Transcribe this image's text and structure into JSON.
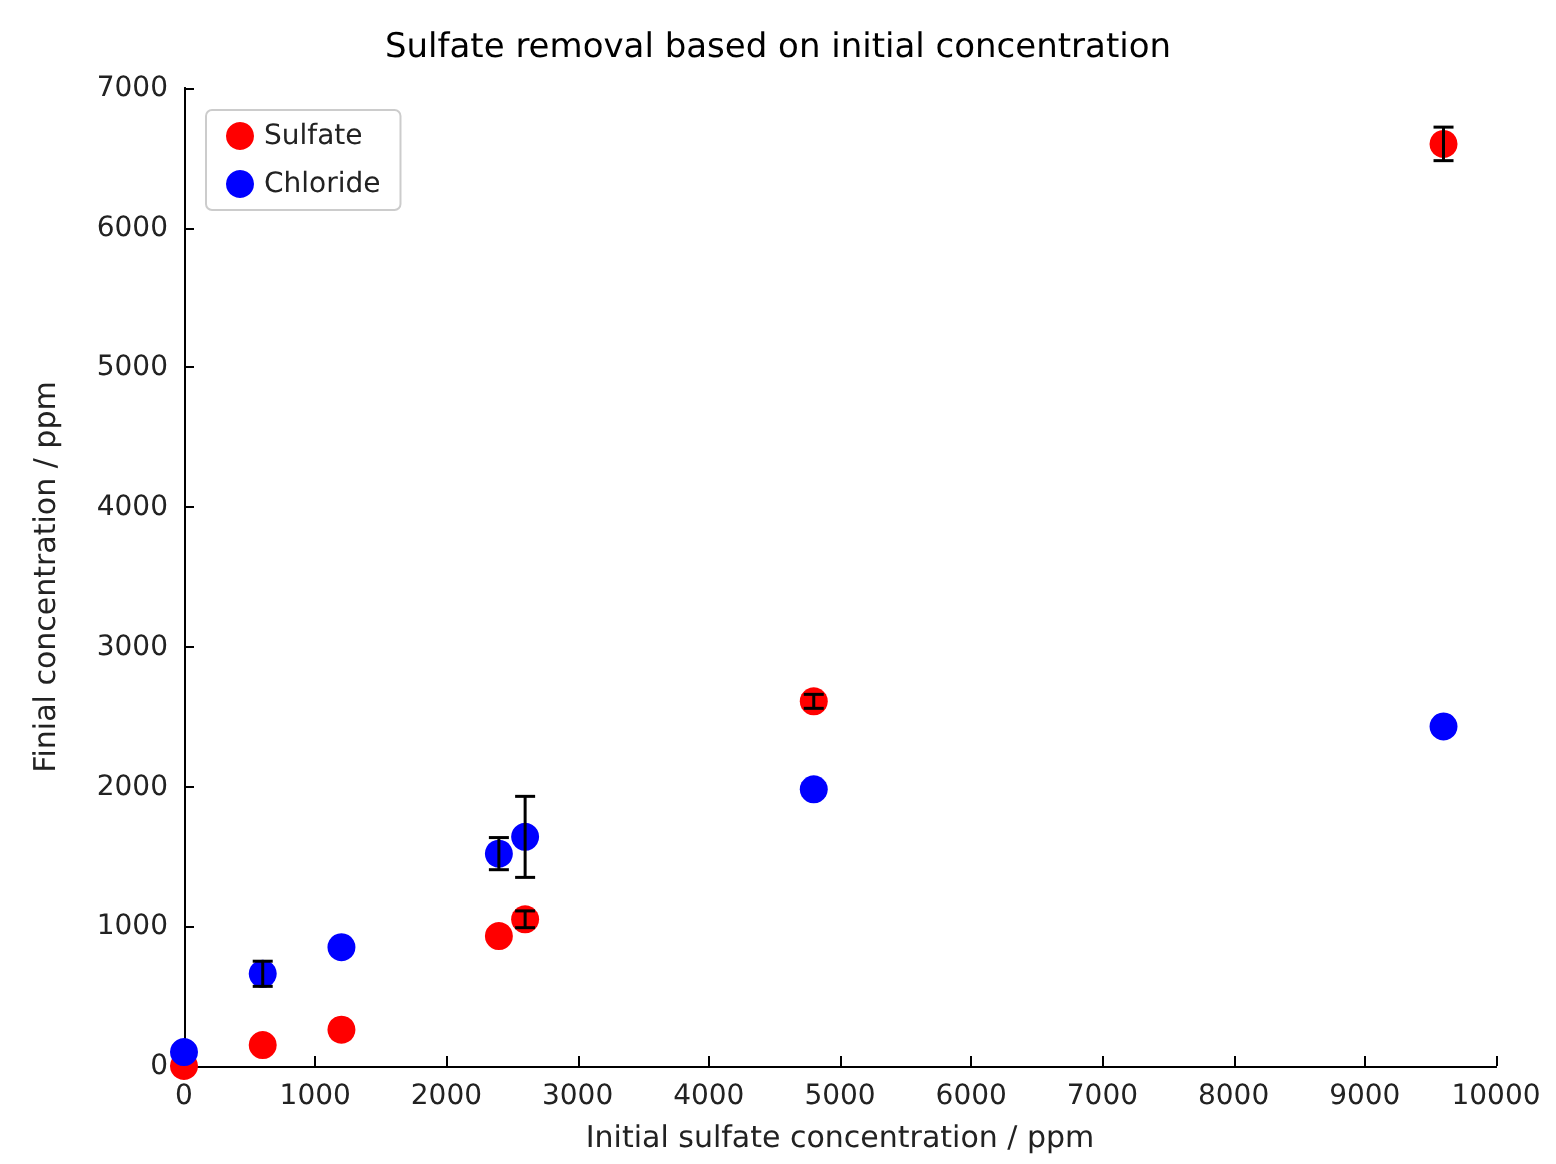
{
  "chart_data": {
    "type": "scatter",
    "title": "Sulfate removal based on initial concentration",
    "xlabel": "Initial sulfate concentration / ppm",
    "ylabel": "Finial concentration / ppm",
    "x": [
      0,
      600,
      1200,
      2400,
      2600,
      4800,
      9600
    ],
    "series": [
      {
        "name": "Sulfate",
        "color": "#ff0000",
        "values": [
          0,
          150,
          260,
          930,
          1050,
          2610,
          6600
        ],
        "errors": [
          null,
          null,
          null,
          null,
          60,
          50,
          120
        ]
      },
      {
        "name": "Chloride",
        "color": "#0000ff",
        "values": [
          100,
          660,
          850,
          1520,
          1640,
          1980,
          2430
        ],
        "errors": [
          null,
          90,
          null,
          115,
          290,
          null,
          null
        ]
      }
    ],
    "xlim": [
      0,
      10000
    ],
    "xticks": [
      0,
      1000,
      2000,
      3000,
      4000,
      5000,
      6000,
      7000,
      8000,
      9000,
      10000
    ],
    "ylim": [
      0,
      7000
    ],
    "yticks": [
      0,
      1000,
      2000,
      3000,
      4000,
      5000,
      6000,
      7000
    ],
    "grid": false,
    "legend": "top left",
    "marker": "circle"
  }
}
